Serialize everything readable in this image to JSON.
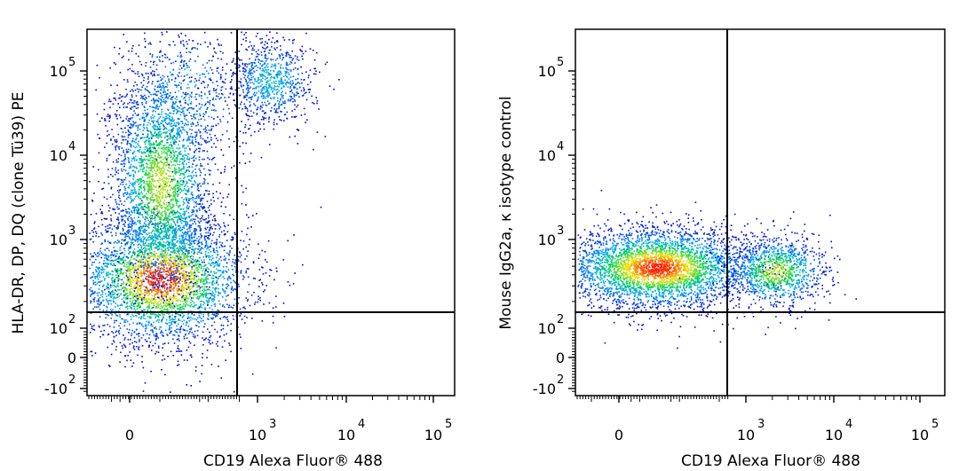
{
  "chart_data": [
    {
      "type": "scatter",
      "subtype": "flow-cytometry-density-dotplot",
      "xlabel": "CD19 Alexa Fluor® 488",
      "ylabel": "HLA-DR, DP, DQ (clone Tü39) PE",
      "x_ticks": [
        {
          "base": "0",
          "exp": ""
        },
        {
          "base": "10",
          "exp": "3"
        },
        {
          "base": "10",
          "exp": "4"
        },
        {
          "base": "10",
          "exp": "5"
        }
      ],
      "y_ticks": [
        {
          "base": "-10",
          "exp": "2"
        },
        {
          "base": "0",
          "exp": ""
        },
        {
          "base": "10",
          "exp": "2"
        },
        {
          "base": "10",
          "exp": "3"
        },
        {
          "base": "10",
          "exp": "4"
        },
        {
          "base": "10",
          "exp": "5"
        }
      ],
      "quadrant_gate": {
        "x": 600,
        "y": 140
      },
      "populations": [
        {
          "name": "",
          "x_center": 0.2,
          "y_center": 0.32,
          "x_spread": 0.12,
          "y_spread": 0.09,
          "count": 3500,
          "density": "high"
        },
        {
          "name": "",
          "x_center": 0.2,
          "y_center": 0.58,
          "x_spread": 0.07,
          "y_spread": 0.16,
          "count": 3000,
          "density": "medium"
        },
        {
          "name": "",
          "x_center": 0.26,
          "y_center": 0.82,
          "x_spread": 0.09,
          "y_spread": 0.1,
          "count": 500,
          "density": "low"
        },
        {
          "name": "",
          "x_center": 0.5,
          "y_center": 0.86,
          "x_spread": 0.06,
          "y_spread": 0.06,
          "count": 800,
          "density": "low"
        }
      ]
    },
    {
      "type": "scatter",
      "subtype": "flow-cytometry-density-dotplot",
      "xlabel": "CD19 Alexa Fluor® 488",
      "ylabel": "Mouse IgG2a, κ isotype control",
      "x_ticks": [
        {
          "base": "0",
          "exp": ""
        },
        {
          "base": "10",
          "exp": "3"
        },
        {
          "base": "10",
          "exp": "4"
        },
        {
          "base": "10",
          "exp": "5"
        }
      ],
      "y_ticks": [
        {
          "base": "-10",
          "exp": "2"
        },
        {
          "base": "0",
          "exp": ""
        },
        {
          "base": "10",
          "exp": "2"
        },
        {
          "base": "10",
          "exp": "3"
        },
        {
          "base": "10",
          "exp": "4"
        },
        {
          "base": "10",
          "exp": "5"
        }
      ],
      "quadrant_gate": {
        "x": 600,
        "y": 140
      },
      "populations": [
        {
          "name": "",
          "x_center": 0.22,
          "y_center": 0.35,
          "x_spread": 0.13,
          "y_spread": 0.055,
          "count": 3800,
          "density": "high"
        },
        {
          "name": "",
          "x_center": 0.54,
          "y_center": 0.34,
          "x_spread": 0.07,
          "y_spread": 0.05,
          "count": 1100,
          "density": "medium"
        }
      ]
    }
  ]
}
